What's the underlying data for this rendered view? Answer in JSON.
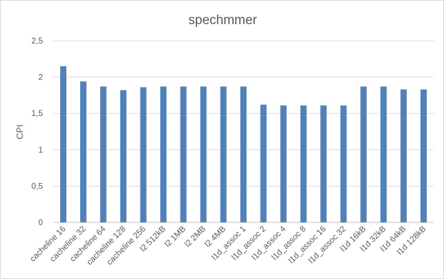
{
  "chart_data": {
    "type": "bar",
    "title": "spechmmer",
    "xlabel": "",
    "ylabel": "CPI",
    "ylim": [
      0,
      2.5
    ],
    "yticks": [
      0,
      0.5,
      1,
      1.5,
      2,
      2.5
    ],
    "ytick_labels": [
      "0",
      "0,5",
      "1",
      "1,5",
      "2",
      "2,5"
    ],
    "grid": true,
    "legend": "none",
    "bar_color": "#4f81bd",
    "categories": [
      "cacheline 16",
      "cacheline 32",
      "cacheline 64",
      "cacheline 128",
      "cacheline 256",
      "l2 512kB",
      "l2 1MB",
      "l2 2MB",
      "l2 4MB",
      "l1d_assoc 1",
      "l1d_assoc 2",
      "l1d_assoc 4",
      "l1d_assoc 8",
      "l1d_assoc 16",
      "l1d_assoc 32",
      "l1d 16kB",
      "l1d 32kB",
      "l1d 64kB",
      "l1d 128kB"
    ],
    "values": [
      2.15,
      1.94,
      1.87,
      1.82,
      1.86,
      1.87,
      1.87,
      1.87,
      1.87,
      1.87,
      1.62,
      1.61,
      1.61,
      1.61,
      1.61,
      1.87,
      1.87,
      1.83,
      1.83
    ]
  }
}
